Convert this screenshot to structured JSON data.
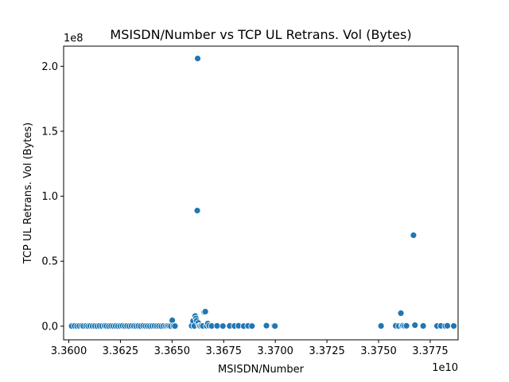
{
  "chart_data": {
    "type": "scatter",
    "title": "MSISDN/Number vs TCP UL Retrans. Vol (Bytes)",
    "xlabel": "MSISDN/Number",
    "ylabel": "TCP UL Retrans. Vol (Bytes)",
    "x_offset_label": "1e10",
    "y_offset_label": "1e8",
    "xlim": [
      33597500000,
      33788500000
    ],
    "ylim": [
      -10500000,
      215500000
    ],
    "x_scale": 10000000000,
    "y_scale": 100000000,
    "x_ticks": [
      33600000000,
      33625000000,
      33650000000,
      33675000000,
      33700000000,
      33725000000,
      33750000000,
      33775000000
    ],
    "x_tick_labels": [
      "3.3600",
      "3.3625",
      "3.3650",
      "3.3675",
      "3.3700",
      "3.3725",
      "3.3750",
      "3.3775"
    ],
    "y_ticks": [
      0,
      50000000,
      100000000,
      150000000,
      200000000
    ],
    "y_tick_labels": [
      "0.0",
      "0.5",
      "1.0",
      "1.5",
      "2.0"
    ],
    "grid": false,
    "legend": "none",
    "marker_color": "#1f77b4",
    "marker_edge_color": "#ffffff",
    "points": [
      [
        33601400000,
        100000
      ],
      [
        33602800000,
        200000
      ],
      [
        33604000000,
        50000
      ],
      [
        33605100000,
        150000
      ],
      [
        33606300000,
        300000
      ],
      [
        33607100000,
        100000
      ],
      [
        33608400000,
        200000
      ],
      [
        33609400000,
        50000
      ],
      [
        33610400000,
        250000
      ],
      [
        33611500000,
        100000
      ],
      [
        33612600000,
        150000
      ],
      [
        33613800000,
        50000
      ],
      [
        33614900000,
        200000
      ],
      [
        33616100000,
        100000
      ],
      [
        33617300000,
        300000
      ],
      [
        33618200000,
        150000
      ],
      [
        33619400000,
        50000
      ],
      [
        33620500000,
        250000
      ],
      [
        33621600000,
        100000
      ],
      [
        33622700000,
        200000
      ],
      [
        33623800000,
        50000
      ],
      [
        33624900000,
        150000
      ],
      [
        33626000000,
        300000
      ],
      [
        33627100000,
        100000
      ],
      [
        33628200000,
        200000
      ],
      [
        33629300000,
        50000
      ],
      [
        33630400000,
        250000
      ],
      [
        33631500000,
        150000
      ],
      [
        33632600000,
        100000
      ],
      [
        33633700000,
        200000
      ],
      [
        33634800000,
        50000
      ],
      [
        33636000000,
        300000
      ],
      [
        33637100000,
        100000
      ],
      [
        33638200000,
        150000
      ],
      [
        33639300000,
        50000
      ],
      [
        33640400000,
        200000
      ],
      [
        33641500000,
        250000
      ],
      [
        33642600000,
        100000
      ],
      [
        33643700000,
        150000
      ],
      [
        33644800000,
        50000
      ],
      [
        33645900000,
        200000
      ],
      [
        33647000000,
        100000
      ],
      [
        33647800000,
        300000
      ],
      [
        33648600000,
        150000
      ],
      [
        33649400000,
        50000
      ],
      [
        33650100000,
        4500000
      ],
      [
        33650700000,
        200000
      ],
      [
        33651400000,
        100000
      ],
      [
        33659500000,
        250000
      ],
      [
        33660200000,
        4000000
      ],
      [
        33660800000,
        150000
      ],
      [
        33661200000,
        7800000
      ],
      [
        33661600000,
        6000000
      ],
      [
        33661900000,
        4200000
      ],
      [
        33662200000,
        89000000
      ],
      [
        33662400000,
        206000000
      ],
      [
        33662700000,
        2500000
      ],
      [
        33663100000,
        300000
      ],
      [
        33663600000,
        100000
      ],
      [
        33664200000,
        500000
      ],
      [
        33664900000,
        200000
      ],
      [
        33665600000,
        10800000
      ],
      [
        33666100000,
        11200000
      ],
      [
        33666700000,
        300000
      ],
      [
        33667300000,
        2000000
      ],
      [
        33668000000,
        400000
      ],
      [
        33669200000,
        150000
      ],
      [
        33671800000,
        250000
      ],
      [
        33674600000,
        100000
      ],
      [
        33677900000,
        200000
      ],
      [
        33680200000,
        150000
      ],
      [
        33682200000,
        300000
      ],
      [
        33684700000,
        50000
      ],
      [
        33686800000,
        250000
      ],
      [
        33688700000,
        100000
      ],
      [
        33695700000,
        400000
      ],
      [
        33699400000,
        300000
      ],
      [
        33699800000,
        100000
      ],
      [
        33751200000,
        200000
      ],
      [
        33758300000,
        300000
      ],
      [
        33759800000,
        100000
      ],
      [
        33760800000,
        10000000
      ],
      [
        33761300000,
        250000
      ],
      [
        33761800000,
        500000
      ],
      [
        33762600000,
        150000
      ],
      [
        33763500000,
        300000
      ],
      [
        33766900000,
        70000000
      ],
      [
        33767600000,
        800000
      ],
      [
        33771600000,
        200000
      ],
      [
        33778300000,
        150000
      ],
      [
        33780200000,
        250000
      ],
      [
        33782300000,
        100000
      ],
      [
        33783300000,
        300000
      ],
      [
        33786400000,
        150000
      ]
    ]
  }
}
